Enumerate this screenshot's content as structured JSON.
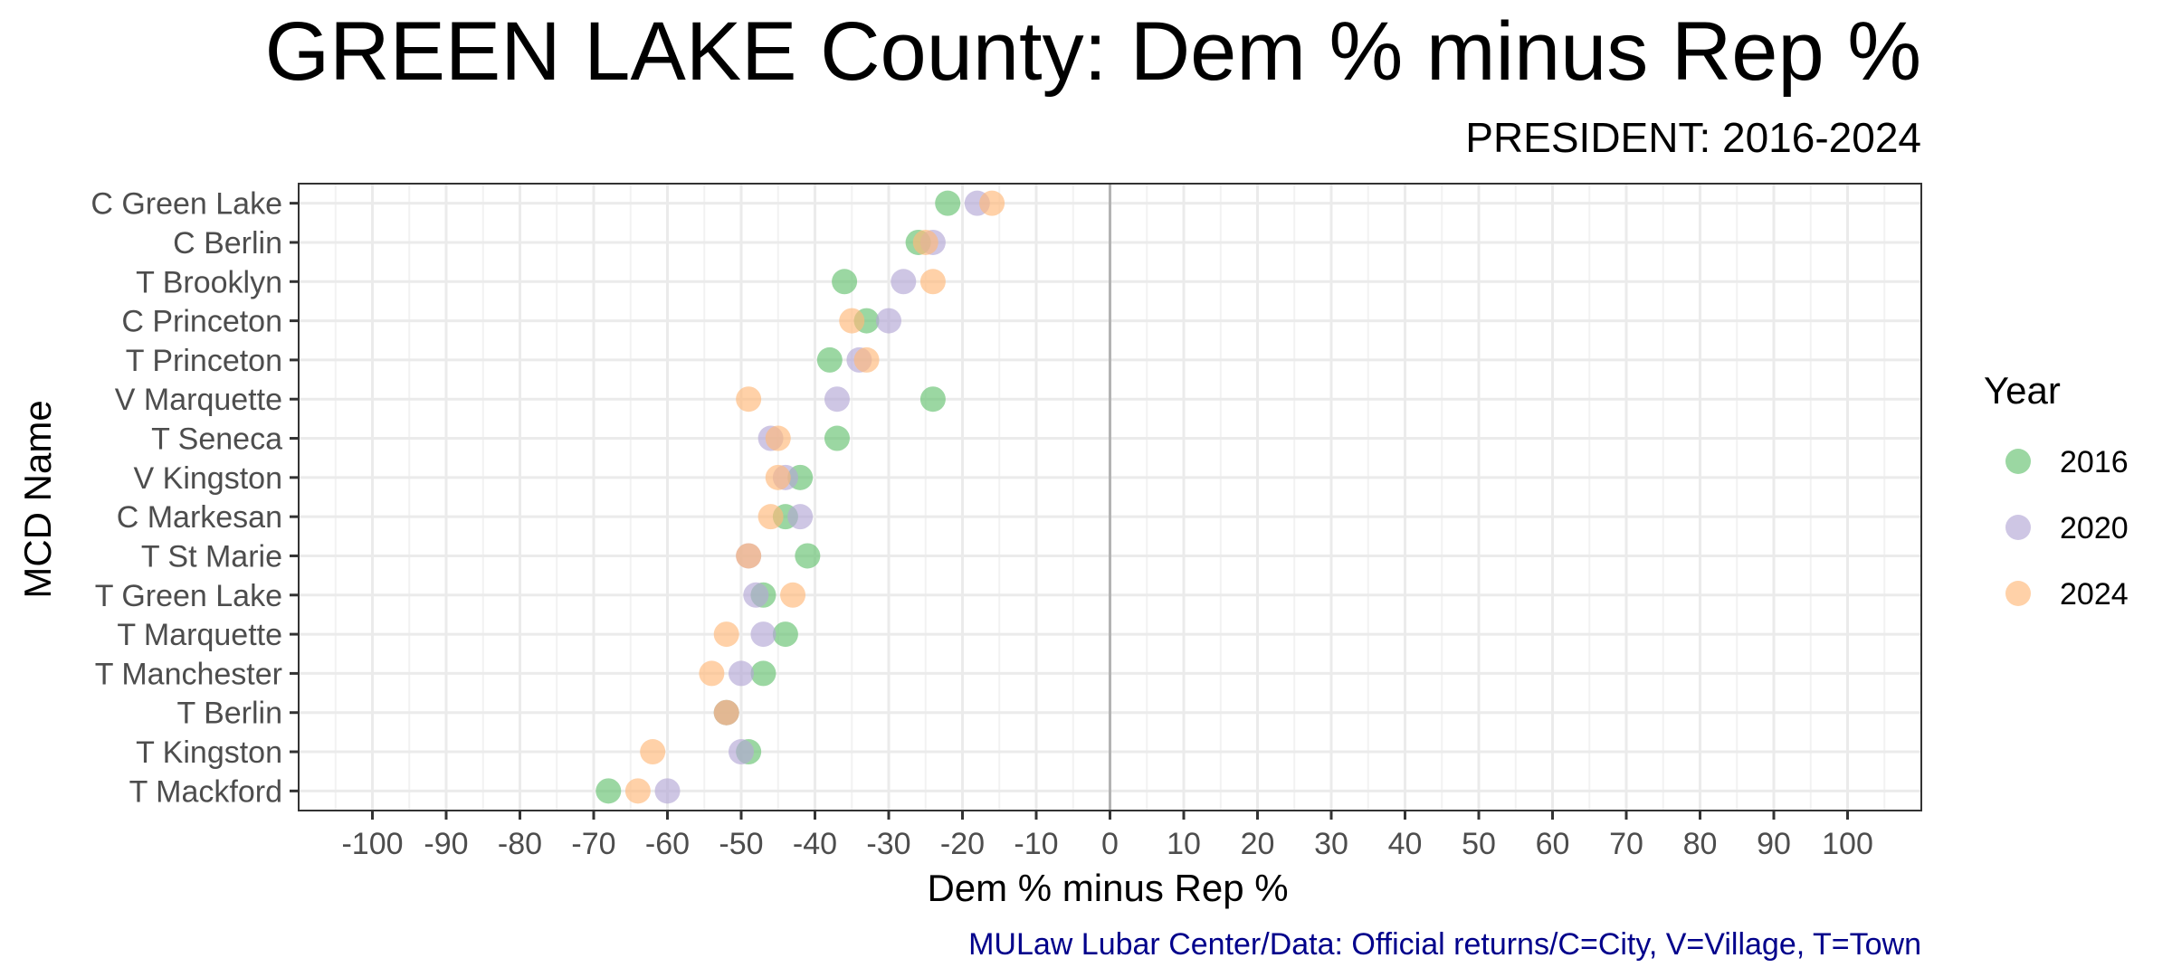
{
  "chart_data": {
    "type": "scatter",
    "title": "GREEN LAKE County: Dem % minus Rep %",
    "subtitle": "PRESIDENT: 2016-2024",
    "xlabel": "Dem % minus Rep %",
    "ylabel": "MCD Name",
    "caption": "MULaw Lubar Center/Data: Official returns/C=City, V=Village, T=Town",
    "xlim": [
      -110,
      110
    ],
    "x_ticks": [
      -100,
      -90,
      -80,
      -70,
      -60,
      -50,
      -40,
      -30,
      -20,
      -10,
      0,
      10,
      20,
      30,
      40,
      50,
      60,
      70,
      80,
      90,
      100
    ],
    "categories": [
      "C Green Lake",
      "C Berlin",
      "T Brooklyn",
      "C Princeton",
      "T Princeton",
      "V Marquette",
      "T Seneca",
      "V Kingston",
      "C Markesan",
      "T St Marie",
      "T Green Lake",
      "T Marquette",
      "T Manchester",
      "T Berlin",
      "T Kingston",
      "T Mackford"
    ],
    "grid": true,
    "legend": {
      "title": "Year",
      "position": "right"
    },
    "series": [
      {
        "name": "2016",
        "color": "#66c270",
        "values": [
          -22,
          -26,
          -36,
          -33,
          -38,
          -24,
          -37,
          -42,
          -44,
          -41,
          -47,
          -44,
          -47,
          -52,
          -49,
          -68
        ]
      },
      {
        "name": "2020",
        "color": "#b3a7d6",
        "values": [
          -18,
          -24,
          -28,
          -30,
          -34,
          -37,
          -46,
          -44,
          -42,
          -49,
          -48,
          -47,
          -50,
          -52,
          -50,
          -60
        ]
      },
      {
        "name": "2024",
        "color": "#ffb97a",
        "values": [
          -16,
          -25,
          -24,
          -35,
          -33,
          -49,
          -45,
          -45,
          -46,
          -49,
          -43,
          -52,
          -54,
          -52,
          -62,
          -64
        ]
      }
    ]
  }
}
